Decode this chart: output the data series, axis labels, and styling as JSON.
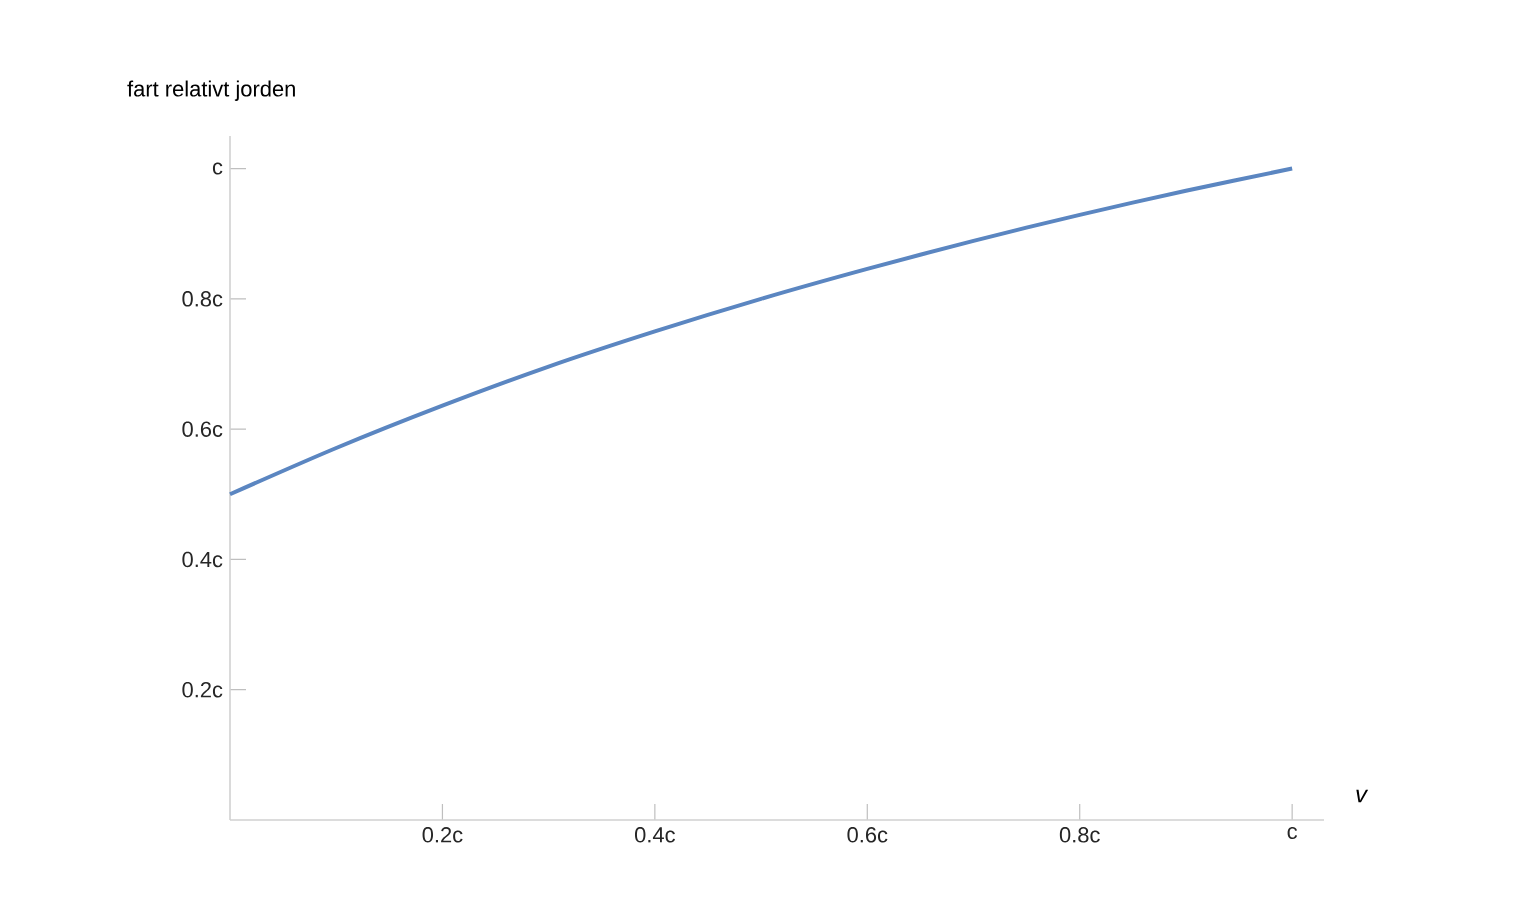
{
  "chart_data": {
    "type": "line",
    "ylabel": "fart relativt jorden",
    "xlabel": "v",
    "x": [
      0,
      0.1,
      0.2,
      0.3,
      0.4,
      0.5,
      0.6,
      0.7,
      0.8,
      0.9,
      1.0
    ],
    "series": [
      {
        "color": "#5b86c1",
        "values": [
          0.5,
          0.571,
          0.636,
          0.696,
          0.75,
          0.8,
          0.846,
          0.889,
          0.929,
          0.966,
          1.0
        ]
      }
    ],
    "xlim": [
      0,
      1.03
    ],
    "ylim": [
      0,
      1.05
    ],
    "xticks": [
      {
        "value": 0.2,
        "label": "0.2c"
      },
      {
        "value": 0.4,
        "label": "0.4c"
      },
      {
        "value": 0.6,
        "label": "0.6c"
      },
      {
        "value": 0.8,
        "label": "0.8c"
      },
      {
        "value": 1.0,
        "label": "c"
      }
    ],
    "yticks": [
      {
        "value": 0.2,
        "label": "0.2c"
      },
      {
        "value": 0.4,
        "label": "0.4c"
      },
      {
        "value": 0.6,
        "label": "0.6c"
      },
      {
        "value": 0.8,
        "label": "0.8c"
      },
      {
        "value": 1.0,
        "label": "c"
      }
    ],
    "grid": false,
    "legend": false,
    "marker": "none",
    "line_style": "solid"
  }
}
